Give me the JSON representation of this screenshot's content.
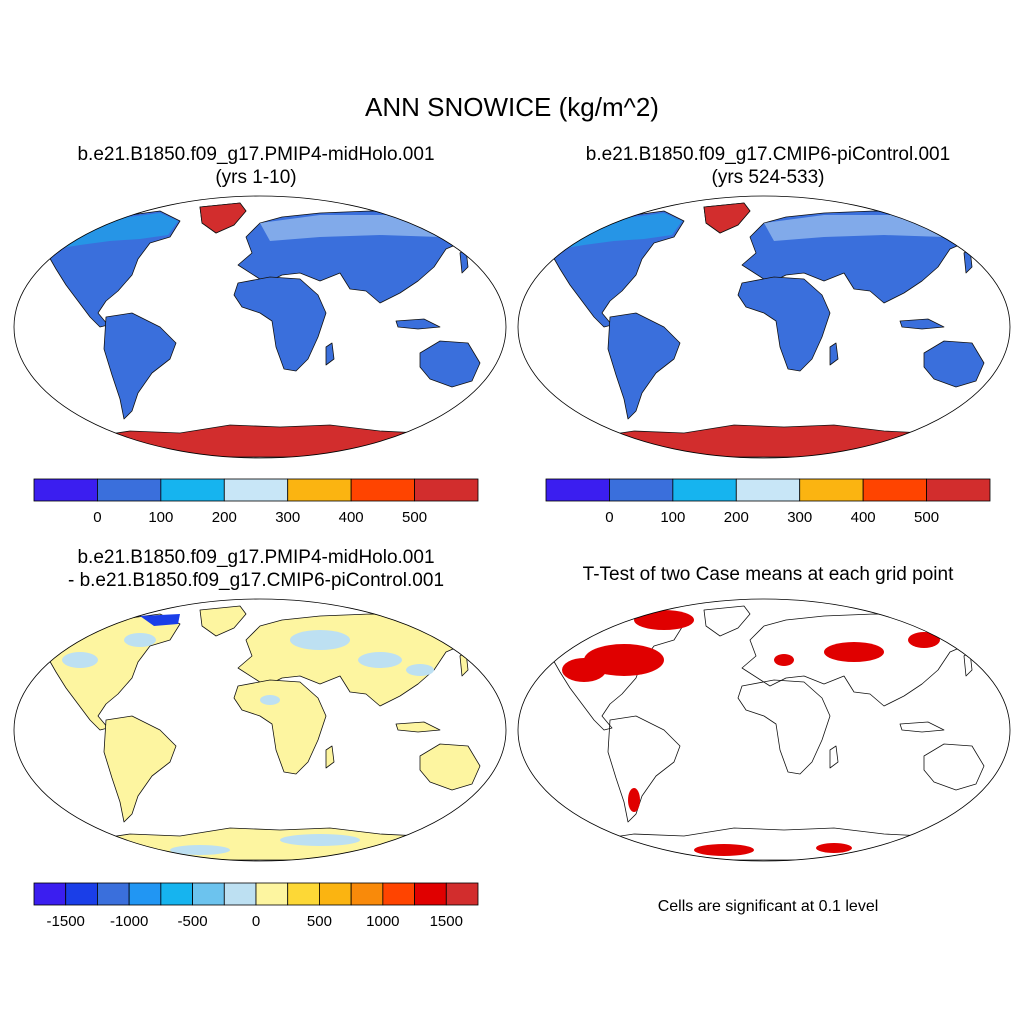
{
  "main_title": "ANN SNOWICE (kg/m^2)",
  "footnote": "Cells are significant at 0.1 level",
  "colors": {
    "land_base": "#3a6fdc",
    "ice": "#d22d2d",
    "diff_base": "#fdf5a0",
    "diff_light_blue": "#bde0f2",
    "significant": "#e00000",
    "coast": "#111111",
    "map_border": "#000000"
  },
  "chart_data": [
    {
      "type": "heatmap",
      "panel": "case-a",
      "title_line1": "b.e21.B1850.f09_g17.PMIP4-midHolo.001",
      "title_line2": "(yrs 1-10)",
      "colorbar": {
        "colors": [
          "#3b1ef0",
          "#3a6fdc",
          "#16b4ef",
          "#c8e6f7",
          "#fbb411",
          "#ff4400",
          "#d22d2d"
        ],
        "ticks": [
          0,
          100,
          200,
          300,
          400,
          500
        ],
        "tick_labels": [
          "0",
          "100",
          "200",
          "300",
          "400",
          "500"
        ],
        "range": [
          -100,
          600
        ]
      }
    },
    {
      "type": "heatmap",
      "panel": "case-b",
      "title_line1": "b.e21.B1850.f09_g17.CMIP6-piControl.001",
      "title_line2": "(yrs 524-533)",
      "colorbar": {
        "colors": [
          "#3b1ef0",
          "#3a6fdc",
          "#16b4ef",
          "#c8e6f7",
          "#fbb411",
          "#ff4400",
          "#d22d2d"
        ],
        "ticks": [
          0,
          100,
          200,
          300,
          400,
          500
        ],
        "tick_labels": [
          "0",
          "100",
          "200",
          "300",
          "400",
          "500"
        ],
        "range": [
          -100,
          600
        ]
      }
    },
    {
      "type": "heatmap",
      "panel": "difference",
      "title_line1": "b.e21.B1850.f09_g17.PMIP4-midHolo.001",
      "title_line2": "- b.e21.B1850.f09_g17.CMIP6-piControl.001",
      "colorbar": {
        "colors": [
          "#3b1ef0",
          "#1a3ee8",
          "#3a6fdc",
          "#2196f3",
          "#16b4ef",
          "#6cc3ee",
          "#bde0f2",
          "#fdf5a0",
          "#fdd836",
          "#fbb411",
          "#f98a0a",
          "#ff4400",
          "#e00000",
          "#d22d2d"
        ],
        "ticks": [
          -1500,
          -1000,
          -500,
          0,
          500,
          1000,
          1500
        ],
        "tick_labels": [
          "-1500",
          "-1000",
          "-500",
          "0",
          "500",
          "1000",
          "1500"
        ],
        "range": [
          -1750,
          1750
        ]
      }
    },
    {
      "type": "heatmap",
      "panel": "t-test",
      "title_line1": "T-Test of two Case means at each grid point"
    }
  ]
}
